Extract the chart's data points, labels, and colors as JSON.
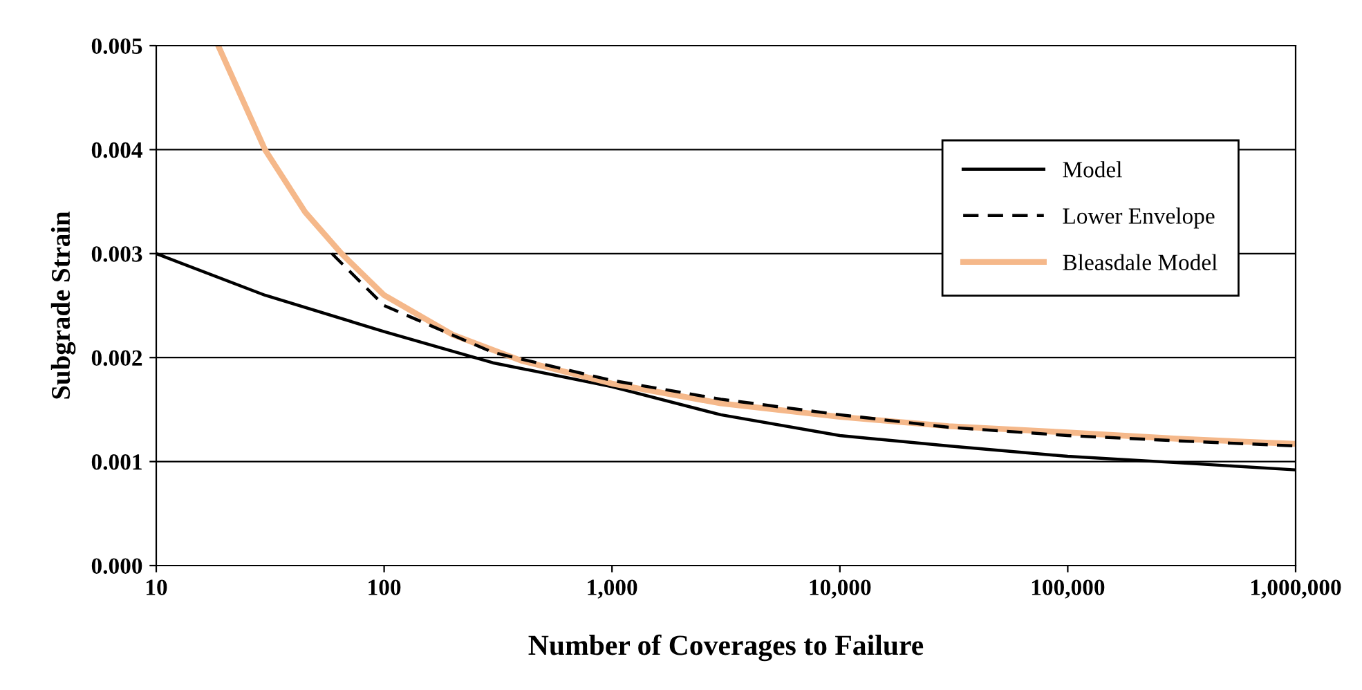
{
  "chart_data": {
    "type": "line",
    "xlabel": "Number of Coverages to Failure",
    "ylabel": "Subgrade Strain",
    "log": "x",
    "xlim": [
      10,
      1000000
    ],
    "ylim": [
      0,
      0.005
    ],
    "xticks": [
      10,
      100,
      {
        "value": 1000,
        "label": "1,000"
      },
      {
        "value": 10000,
        "label": "10,000"
      },
      {
        "value": 100000,
        "label": "100,000"
      },
      {
        "value": 1000000,
        "label": "1,000,000"
      }
    ],
    "yticks": [
      {
        "value": 0,
        "label": "0.000"
      },
      {
        "value": 0.001,
        "label": "0.001"
      },
      {
        "value": 0.002,
        "label": "0.002"
      },
      {
        "value": 0.003,
        "label": "0.003"
      },
      {
        "value": 0.004,
        "label": "0.004"
      },
      {
        "value": 0.005,
        "label": "0.005"
      }
    ],
    "grid": "y",
    "legend": "top right",
    "series": [
      {
        "name": "Model",
        "color": "#000000",
        "line_style": "solid",
        "x": [
          10,
          30,
          100,
          300,
          1000,
          3000,
          10000,
          30000,
          100000,
          300000,
          1000000
        ],
        "values": [
          0.003,
          0.0026,
          0.00225,
          0.00195,
          0.00172,
          0.00145,
          0.00125,
          0.00115,
          0.00105,
          0.00099,
          0.00092
        ]
      },
      {
        "name": "Lower Envelope",
        "color": "#000000",
        "line_style": "dashed",
        "x": [
          59,
          100,
          300,
          1000,
          3000,
          10000,
          30000,
          100000,
          300000,
          1000000
        ],
        "values": [
          0.003,
          0.0025,
          0.00205,
          0.00178,
          0.0016,
          0.00145,
          0.00133,
          0.00125,
          0.0012,
          0.00115
        ]
      },
      {
        "name": "Bleasdale Model",
        "color": "#f5b88a",
        "line_style": "solid",
        "x": [
          18.7,
          30,
          45,
          65,
          100,
          200,
          400,
          1000,
          3000,
          10000,
          30000,
          100000,
          300000,
          1000000
        ],
        "values": [
          0.005,
          0.004,
          0.0034,
          0.003,
          0.0026,
          0.00222,
          0.00197,
          0.00175,
          0.00156,
          0.00143,
          0.00134,
          0.00128,
          0.00122,
          0.00117
        ]
      }
    ]
  }
}
